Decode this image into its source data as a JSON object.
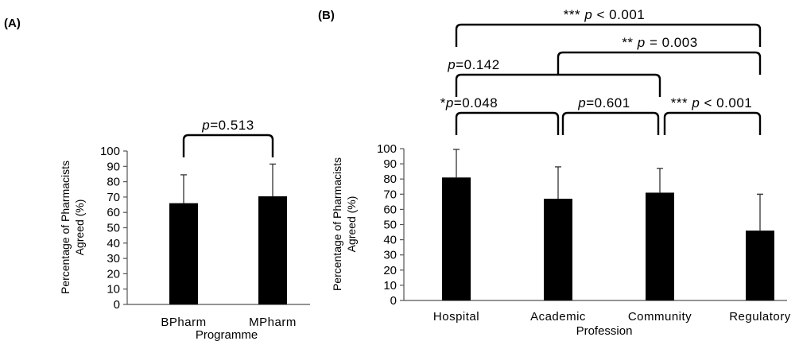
{
  "chart_data": [
    {
      "type": "bar",
      "panel_label": "(A)",
      "categories": [
        "BPharm",
        "MPharm"
      ],
      "values": [
        66,
        70.5
      ],
      "errors": [
        18.5,
        21
      ],
      "xlabel": "Programme",
      "ylabel_line1": "Percentage of Pharmacists",
      "ylabel_line2": "Agreed (%)",
      "ylim": [
        0,
        100
      ],
      "yticks": [
        0,
        10,
        20,
        30,
        40,
        50,
        60,
        70,
        80,
        90,
        100
      ],
      "bar_color": "#000000",
      "comparisons": [
        {
          "from": 0,
          "to": 1,
          "prefix": "",
          "pitalic": "p",
          "rest": "=0.513"
        }
      ]
    },
    {
      "type": "bar",
      "panel_label": "(B)",
      "categories": [
        "Hospital",
        "Academic",
        "Community",
        "Regulatory"
      ],
      "values": [
        81,
        67,
        71,
        46
      ],
      "errors": [
        18.5,
        21,
        16,
        24
      ],
      "xlabel": "Profession",
      "ylabel_line1": "Percentage of Pharmacists",
      "ylabel_line2": "Agreed (%)",
      "ylim": [
        0,
        100
      ],
      "yticks": [
        0,
        10,
        20,
        30,
        40,
        50,
        60,
        70,
        80,
        90,
        100
      ],
      "bar_color": "#000000",
      "comparisons": [
        {
          "from": 0,
          "to": 3,
          "prefix": "*** ",
          "pitalic": "p",
          "rest": " < 0.001"
        },
        {
          "from": 1,
          "to": 3,
          "prefix": "** ",
          "pitalic": "p",
          "rest": " = 0.003"
        },
        {
          "from": 0,
          "to": 2,
          "prefix": "",
          "pitalic": "p",
          "rest": "=0.142"
        },
        {
          "from": 0,
          "to": 1,
          "prefix": "*",
          "pitalic": "p",
          "rest": "=0.048"
        },
        {
          "from": 1,
          "to": 2,
          "prefix": "",
          "pitalic": "p",
          "rest": "=0.601"
        },
        {
          "from": 2,
          "to": 3,
          "prefix": "*** ",
          "pitalic": "p",
          "rest": " < 0.001"
        }
      ]
    }
  ]
}
